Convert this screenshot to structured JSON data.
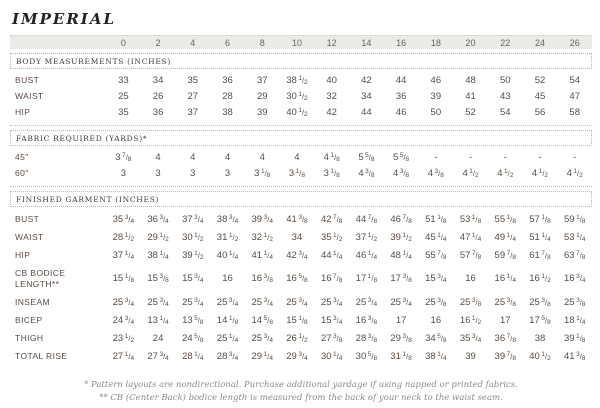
{
  "title": "IMPERIAL",
  "sizes": [
    "0",
    "2",
    "4",
    "6",
    "8",
    "10",
    "12",
    "14",
    "16",
    "18",
    "20",
    "22",
    "24",
    "26"
  ],
  "sections": [
    {
      "heading": "BODY MEASUREMENTS (INCHES)",
      "rows": [
        {
          "label": "BUST",
          "values": [
            "33",
            "34",
            "35",
            "36",
            "37",
            "38 1/2",
            "40",
            "42",
            "44",
            "46",
            "48",
            "50",
            "52",
            "54"
          ]
        },
        {
          "label": "WAIST",
          "values": [
            "25",
            "26",
            "27",
            "28",
            "29",
            "30 1/2",
            "32",
            "34",
            "36",
            "39",
            "41",
            "43",
            "45",
            "47"
          ]
        },
        {
          "label": "HIP",
          "values": [
            "35",
            "36",
            "37",
            "38",
            "39",
            "40 1/2",
            "42",
            "44",
            "46",
            "50",
            "52",
            "54",
            "56",
            "58"
          ]
        }
      ]
    },
    {
      "heading": "FABRIC REQUIRED (YARDS)*",
      "rows": [
        {
          "label": "45\"",
          "values": [
            "3 7/8",
            "4",
            "4",
            "4",
            "4",
            "4",
            "4 1/8",
            "5 5/8",
            "5 5/8",
            "-",
            "-",
            "-",
            "-",
            "-"
          ]
        },
        {
          "label": "60\"",
          "values": [
            "3",
            "3",
            "3",
            "3",
            "3 1/8",
            "3 1/8",
            "3 1/8",
            "4 3/8",
            "4 3/8",
            "4 3/8",
            "4 1/2",
            "4 1/2",
            "4 1/2",
            "4 1/2"
          ]
        }
      ]
    },
    {
      "heading": "FINISHED GARMENT (INCHES)",
      "rows": [
        {
          "label": "BUST",
          "values": [
            "35 3/4",
            "36 3/4",
            "37 3/4",
            "38 3/4",
            "39 3/4",
            "41 3/8",
            "42 7/8",
            "44 7/8",
            "46 7/8",
            "51 1/8",
            "53 1/8",
            "55 1/8",
            "57 1/8",
            "59 1/8"
          ]
        },
        {
          "label": "WAIST",
          "values": [
            "28 1/2",
            "29 1/2",
            "30 1/2",
            "31 1/2",
            "32 1/2",
            "34",
            "35 1/2",
            "37 1/2",
            "39 1/2",
            "45 1/4",
            "47 1/4",
            "49 1/4",
            "51 1/4",
            "53 1/4"
          ]
        },
        {
          "label": "HIP",
          "values": [
            "37 1/4",
            "38 1/4",
            "39 1/2",
            "40 1/4",
            "41 1/4",
            "42 3/4",
            "44 1/4",
            "46 1/4",
            "48 1/4",
            "55 7/8",
            "57 7/8",
            "59 7/8",
            "61 7/8",
            "63 7/8"
          ]
        },
        {
          "label": "CB BODICE LENGTH**",
          "values": [
            "15 1/8",
            "15 3/8",
            "15 3/4",
            "16",
            "16 3/8",
            "16 5/8",
            "16 7/8",
            "17 1/8",
            "17 3/8",
            "15 3/4",
            "16",
            "16 1/4",
            "16 1/2",
            "16 3/4"
          ]
        },
        {
          "label": "INSEAM",
          "values": [
            "25 3/4",
            "25 3/4",
            "25 3/4",
            "25 3/4",
            "25 3/4",
            "25 3/4",
            "25 3/4",
            "25 3/4",
            "25 3/4",
            "25 3/8",
            "25 3/8",
            "25 3/8",
            "25 3/8",
            "25 3/8"
          ]
        },
        {
          "label": "BICEP",
          "values": [
            "24 3/4",
            "13 1/4",
            "13 5/8",
            "14 1/8",
            "14 5/8",
            "15 1/8",
            "15 3/4",
            "16 3/8",
            "17",
            "16",
            "16 1/2",
            "17",
            "17 5/8",
            "18 1/4"
          ]
        },
        {
          "label": "THIGH",
          "values": [
            "23 1/2",
            "24",
            "24 5/8",
            "25 1/4",
            "25 3/4",
            "26 1/2",
            "27 3/8",
            "28 3/8",
            "29 3/8",
            "34 5/8",
            "35 3/4",
            "36 7/8",
            "38",
            "39 1/8"
          ]
        },
        {
          "label": "TOTAL RISE",
          "values": [
            "27 1/4",
            "27 3/4",
            "28 1/4",
            "28 3/4",
            "29 1/4",
            "29 3/4",
            "30 1/4",
            "30 5/8",
            "31 1/8",
            "38 1/4",
            "39",
            "39 7/8",
            "40 1/2",
            "41 3/8"
          ]
        }
      ]
    }
  ],
  "footnotes": [
    "* Pattern layouts are nondirectional. Purchase additional yardage if using napped or printed fabrics.",
    "** CB (Center Back) bodice length is measured from the back of your neck to the waist seam."
  ],
  "colors": {
    "text": "#5a4b43",
    "strip_bg": "#edebe8",
    "dotted_border": "#b9b5ae",
    "footnote": "#8a8a8a"
  }
}
